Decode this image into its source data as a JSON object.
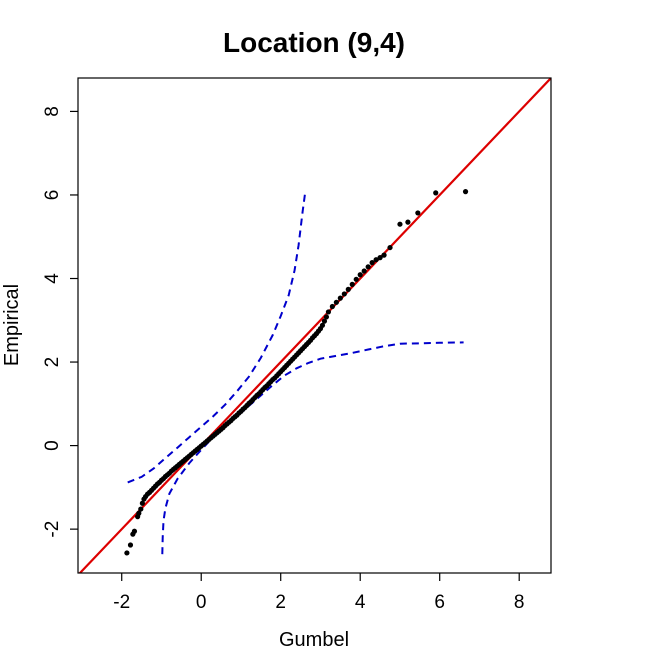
{
  "chart_data": {
    "type": "scatter",
    "title": "Location (9,4)",
    "xlabel": "Gumbel",
    "ylabel": "Empirical",
    "xlim": [
      -3.1,
      8.8
    ],
    "ylim": [
      -3.05,
      8.8
    ],
    "x_ticks": [
      -2,
      0,
      2,
      4,
      6,
      8
    ],
    "y_ticks": [
      -2,
      0,
      2,
      4,
      6,
      8
    ],
    "x_tick_labels": [
      "-2",
      "0",
      "2",
      "4",
      "6",
      "8"
    ],
    "y_tick_labels": [
      "-2",
      "0",
      "2",
      "4",
      "6",
      "8"
    ],
    "grid": false,
    "legend": "none",
    "reference_line": {
      "slope": 1,
      "intercept": 0,
      "color": "#dd0000"
    },
    "points_color": "#000000",
    "band_color": "#0000cc",
    "points": {
      "x": [
        -1.87,
        -1.78,
        -1.72,
        -1.68,
        -1.6,
        -1.57,
        -1.52,
        -1.48,
        -1.44,
        -1.4,
        -1.35,
        -1.3,
        -1.25,
        -1.2,
        -1.15,
        -1.1,
        -1.05,
        -1.0,
        -0.95,
        -0.9,
        -0.85,
        -0.8,
        -0.75,
        -0.7,
        -0.65,
        -0.6,
        -0.55,
        -0.5,
        -0.45,
        -0.4,
        -0.35,
        -0.3,
        -0.25,
        -0.2,
        -0.15,
        -0.1,
        -0.05,
        0.0,
        0.05,
        0.1,
        0.15,
        0.2,
        0.25,
        0.3,
        0.35,
        0.4,
        0.45,
        0.5,
        0.55,
        0.6,
        0.65,
        0.7,
        0.75,
        0.8,
        0.85,
        0.9,
        0.95,
        1.0,
        1.05,
        1.1,
        1.15,
        1.2,
        1.25,
        1.3,
        1.35,
        1.4,
        1.45,
        1.5,
        1.55,
        1.6,
        1.65,
        1.7,
        1.75,
        1.8,
        1.85,
        1.9,
        1.95,
        2.0,
        2.05,
        2.1,
        2.15,
        2.2,
        2.25,
        2.3,
        2.35,
        2.4,
        2.45,
        2.5,
        2.55,
        2.6,
        2.65,
        2.7,
        2.75,
        2.8,
        2.85,
        2.9,
        2.95,
        3.0,
        3.05,
        3.1,
        3.15,
        3.2,
        3.3,
        3.4,
        3.5,
        3.6,
        3.7,
        3.8,
        3.9,
        4.0,
        4.1,
        4.2,
        4.3,
        4.4,
        4.5,
        4.6,
        4.75,
        5.0,
        5.2,
        5.45,
        5.9,
        6.65
      ],
      "y": [
        -2.57,
        -2.38,
        -2.12,
        -2.05,
        -1.7,
        -1.62,
        -1.52,
        -1.38,
        -1.28,
        -1.22,
        -1.16,
        -1.12,
        -1.07,
        -1.02,
        -0.97,
        -0.92,
        -0.88,
        -0.83,
        -0.79,
        -0.74,
        -0.7,
        -0.66,
        -0.61,
        -0.57,
        -0.53,
        -0.49,
        -0.45,
        -0.41,
        -0.37,
        -0.33,
        -0.29,
        -0.25,
        -0.21,
        -0.17,
        -0.13,
        -0.09,
        -0.05,
        -0.01,
        0.03,
        0.07,
        0.11,
        0.15,
        0.19,
        0.23,
        0.27,
        0.31,
        0.35,
        0.39,
        0.43,
        0.48,
        0.52,
        0.56,
        0.6,
        0.65,
        0.69,
        0.73,
        0.78,
        0.82,
        0.87,
        0.91,
        0.96,
        1.01,
        1.05,
        1.1,
        1.15,
        1.2,
        1.24,
        1.29,
        1.34,
        1.39,
        1.43,
        1.48,
        1.53,
        1.58,
        1.62,
        1.67,
        1.72,
        1.77,
        1.82,
        1.87,
        1.92,
        1.97,
        2.02,
        2.07,
        2.12,
        2.17,
        2.22,
        2.27,
        2.32,
        2.37,
        2.42,
        2.47,
        2.52,
        2.58,
        2.63,
        2.68,
        2.74,
        2.8,
        2.88,
        2.98,
        3.08,
        3.2,
        3.33,
        3.43,
        3.53,
        3.63,
        3.74,
        3.86,
        3.98,
        4.09,
        4.18,
        4.28,
        4.38,
        4.45,
        4.5,
        4.56,
        4.74,
        5.3,
        5.35,
        5.57,
        6.05,
        6.08
      ]
    },
    "upper_band": {
      "x": [
        -1.85,
        -1.5,
        -1.2,
        -0.9,
        -0.6,
        -0.3,
        0.0,
        0.3,
        0.6,
        0.9,
        1.2,
        1.5,
        1.8,
        2.0,
        2.2,
        2.35,
        2.45,
        2.55,
        2.62
      ],
      "y": [
        -0.88,
        -0.75,
        -0.55,
        -0.3,
        -0.05,
        0.2,
        0.45,
        0.7,
        0.98,
        1.3,
        1.65,
        2.1,
        2.65,
        3.1,
        3.6,
        4.2,
        4.8,
        5.6,
        6.1
      ]
    },
    "lower_band": {
      "x": [
        -0.98,
        -0.97,
        -0.95,
        -0.9,
        -0.8,
        -0.6,
        -0.3,
        0.0,
        0.3,
        0.6,
        0.9,
        1.2,
        1.5,
        1.8,
        2.1,
        2.4,
        2.7,
        3.0,
        3.4,
        3.8,
        4.2,
        4.6,
        5.0,
        5.5,
        6.0,
        6.6
      ],
      "y": [
        -2.6,
        -2.2,
        -1.8,
        -1.5,
        -1.15,
        -0.8,
        -0.42,
        -0.1,
        0.2,
        0.45,
        0.7,
        0.95,
        1.2,
        1.45,
        1.68,
        1.85,
        1.98,
        2.08,
        2.15,
        2.22,
        2.3,
        2.38,
        2.44,
        2.45,
        2.46,
        2.47
      ]
    }
  }
}
